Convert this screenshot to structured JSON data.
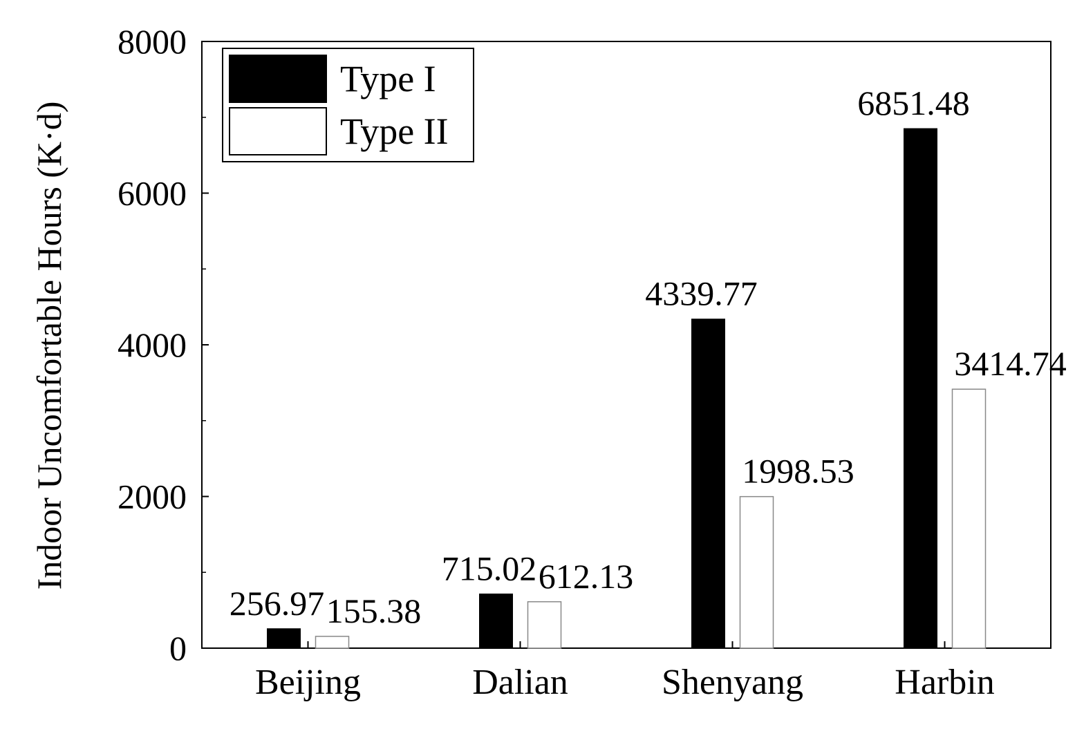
{
  "chart_data": {
    "type": "bar",
    "categories": [
      "Beijing",
      "Dalian",
      "Shenyang",
      "Harbin"
    ],
    "series": [
      {
        "name": "Type I",
        "values": [
          256.97,
          715.02,
          4339.77,
          6851.48
        ],
        "color": "#000000"
      },
      {
        "name": "Type II",
        "values": [
          155.38,
          612.13,
          1998.53,
          3414.74
        ],
        "color": "#ffffff"
      }
    ],
    "data_labels": [
      [
        "256.97",
        "715.02",
        "4339.77",
        "6851.48"
      ],
      [
        "155.38",
        "612.13",
        "1998.53",
        "3414.74"
      ]
    ],
    "ylabel": "Indoor Uncomfortable Hours (K·d)",
    "xlabel": "",
    "ylim": [
      0,
      8000
    ],
    "yticks": [
      "0",
      "2000",
      "4000",
      "6000",
      "8000"
    ],
    "grid": false,
    "legend_position": "top-left"
  }
}
